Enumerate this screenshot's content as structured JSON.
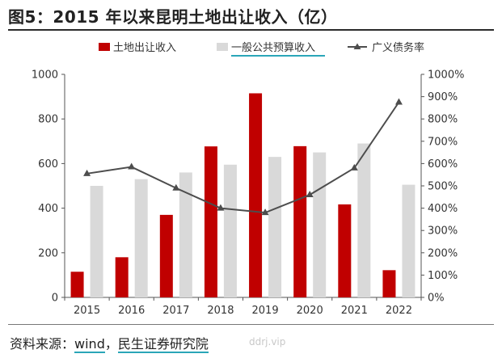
{
  "title": "图5：2015 年以来昆明土地出让收入（亿）",
  "source": {
    "prefix": "资料来源：",
    "wind": "wind",
    "sep": "，",
    "org": "民生证券研究院"
  },
  "watermark": "ddrj.vip",
  "colors": {
    "land": "#c00000",
    "budget": "#d9d9d9",
    "ratio": "#4d4d4d",
    "legend_underline": "#2aa6b8"
  },
  "chart_data": {
    "type": "bar",
    "categories": [
      "2015",
      "2016",
      "2017",
      "2018",
      "2019",
      "2020",
      "2021",
      "2022"
    ],
    "series": [
      {
        "name": "土地出让收入",
        "type": "bar",
        "axis": "left",
        "values": [
          115,
          180,
          370,
          677,
          915,
          678,
          417,
          122
        ]
      },
      {
        "name": "一般公共预算收入",
        "type": "bar",
        "axis": "left",
        "values": [
          500,
          530,
          560,
          595,
          630,
          650,
          690,
          505
        ]
      },
      {
        "name": "广义债务率",
        "type": "line",
        "axis": "right",
        "values": [
          555,
          585,
          490,
          400,
          380,
          460,
          580,
          875
        ]
      }
    ],
    "ylim": [
      0,
      1000
    ],
    "yticks": [
      "0",
      "200",
      "400",
      "600",
      "800",
      "1000"
    ],
    "y2lim": [
      0,
      1000
    ],
    "y2ticks": [
      "0%",
      "100%",
      "200%",
      "300%",
      "400%",
      "500%",
      "600%",
      "700%",
      "800%",
      "900%",
      "1000%"
    ],
    "legend_position": "top"
  }
}
